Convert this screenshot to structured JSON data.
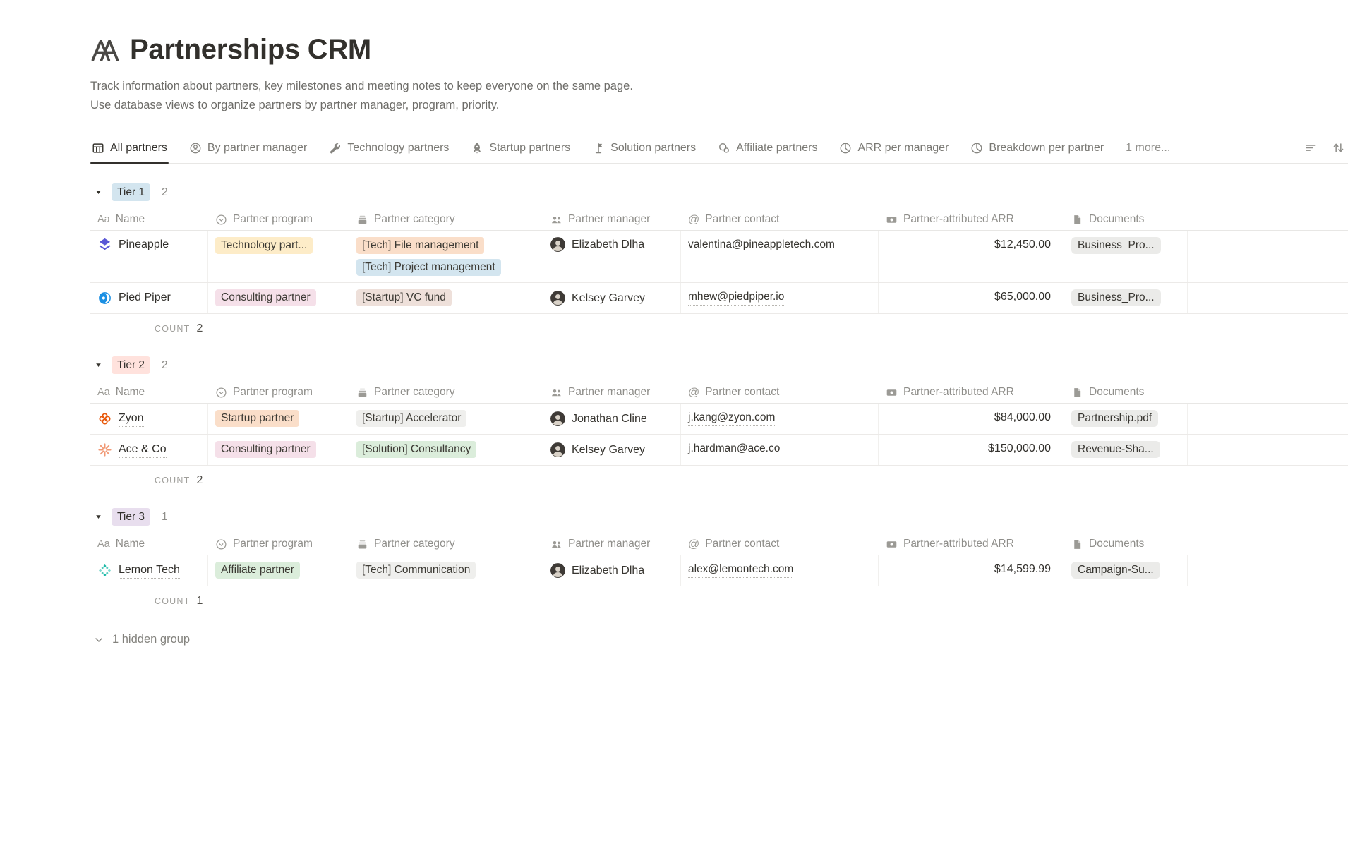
{
  "page": {
    "icon": "bridge-icon",
    "title": "Partnerships CRM",
    "description_line1": "Track information about partners, key milestones and meeting notes to keep everyone on the same page.",
    "description_line2": "Use database views to organize partners by partner manager, program, priority."
  },
  "tabs": [
    {
      "label": "All partners",
      "icon": "table-icon",
      "active": true
    },
    {
      "label": "By partner manager",
      "icon": "person-icon",
      "active": false
    },
    {
      "label": "Technology partners",
      "icon": "wrench-icon",
      "active": false
    },
    {
      "label": "Startup partners",
      "icon": "rocket-icon",
      "active": false
    },
    {
      "label": "Solution partners",
      "icon": "flag-icon",
      "active": false
    },
    {
      "label": "Affiliate partners",
      "icon": "affiliate-icon",
      "active": false
    },
    {
      "label": "ARR per manager",
      "icon": "pie-icon",
      "active": false
    },
    {
      "label": "Breakdown per partner",
      "icon": "pie-icon",
      "active": false
    },
    {
      "label": "1 more...",
      "icon": null,
      "active": false
    }
  ],
  "toolbar": {
    "filter_icon": "filter-icon",
    "sort_icon": "sort-icon"
  },
  "columns": [
    {
      "label": "Name",
      "icon": "aa-icon"
    },
    {
      "label": "Partner program",
      "icon": "select-icon"
    },
    {
      "label": "Partner category",
      "icon": "category-icon"
    },
    {
      "label": "Partner manager",
      "icon": "people-icon"
    },
    {
      "label": "Partner contact",
      "icon": "at-icon"
    },
    {
      "label": "Partner-attributed ARR",
      "icon": "banknote-icon"
    },
    {
      "label": "Documents",
      "icon": "file-icon"
    }
  ],
  "labels": {
    "count": "COUNT"
  },
  "groups": [
    {
      "tier": "Tier 1",
      "tier_bg": "#d3e5ef",
      "count": "2",
      "rows": [
        {
          "name": "Pineapple",
          "logo": "pineapple-logo",
          "program": {
            "label": "Technology part...",
            "bg": "#fdecc8"
          },
          "categories": [
            {
              "label": "[Tech] File management",
              "bg": "#fadec9"
            },
            {
              "label": "[Tech] Project management",
              "bg": "#d3e5ef"
            }
          ],
          "manager": "Elizabeth Dlha",
          "contact": "valentina@pineappletech.com",
          "arr": "$12,450.00",
          "document": "Business_Pro..."
        },
        {
          "name": "Pied Piper",
          "logo": "piedpiper-logo",
          "program": {
            "label": "Consulting partner",
            "bg": "#f5e0e9"
          },
          "categories": [
            {
              "label": "[Startup] VC fund",
              "bg": "#eee0da"
            }
          ],
          "manager": "Kelsey Garvey",
          "contact": "mhew@piedpiper.io",
          "arr": "$65,000.00",
          "document": "Business_Pro..."
        }
      ]
    },
    {
      "tier": "Tier 2",
      "tier_bg": "#ffe2dd",
      "count": "2",
      "rows": [
        {
          "name": "Zyon",
          "logo": "zyon-logo",
          "program": {
            "label": "Startup partner",
            "bg": "#fadec9"
          },
          "categories": [
            {
              "label": "[Startup] Accelerator",
              "bg": "#efefed"
            }
          ],
          "manager": "Jonathan Cline",
          "contact": "j.kang@zyon.com",
          "arr": "$84,000.00",
          "document": "Partnership.pdf"
        },
        {
          "name": "Ace & Co",
          "logo": "ace-logo",
          "program": {
            "label": "Consulting partner",
            "bg": "#f5e0e9"
          },
          "categories": [
            {
              "label": "[Solution] Consultancy",
              "bg": "#dbeddb"
            }
          ],
          "manager": "Kelsey Garvey",
          "contact": "j.hardman@ace.co",
          "arr": "$150,000.00",
          "document": "Revenue-Sha..."
        }
      ]
    },
    {
      "tier": "Tier 3",
      "tier_bg": "#e8deee",
      "count": "1",
      "rows": [
        {
          "name": "Lemon Tech",
          "logo": "lemon-logo",
          "program": {
            "label": "Affiliate partner",
            "bg": "#dbeddb"
          },
          "categories": [
            {
              "label": "[Tech] Communication",
              "bg": "#efefed"
            }
          ],
          "manager": "Elizabeth Dlha",
          "contact": "alex@lemontech.com",
          "arr": "$14,599.99",
          "document": "Campaign-Su..."
        }
      ]
    }
  ],
  "footer": {
    "hidden_group": "1 hidden group"
  }
}
